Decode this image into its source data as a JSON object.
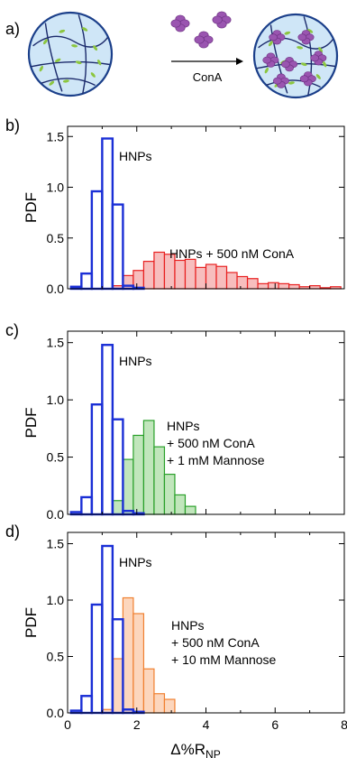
{
  "figure": {
    "panel_labels": [
      "a)",
      "b)",
      "c)",
      "d)"
    ],
    "scheme": {
      "arrow_label": "ConA"
    }
  },
  "colors": {
    "hnp": "#1a2fd6",
    "cona": "#e82020",
    "cona_fill": "#f6b3b3",
    "mannose1": "#2aa02a",
    "mannose1_fill": "#b6e2b0",
    "mannose10": "#f08030",
    "mannose10_fill": "#fbcfb2",
    "particle_fill": "#cfe6f7",
    "particle_stroke": "#1b3f8a",
    "cona_protein": "#9a55b0"
  },
  "chart_data": [
    {
      "type": "bar",
      "panel": "b)",
      "ylabel": "PDF",
      "xlabel": "",
      "xlim": [
        0,
        8
      ],
      "ylim": [
        0,
        1.6
      ],
      "yticks": [
        0.0,
        0.5,
        1.0,
        1.5
      ],
      "bin_width": 0.3,
      "series": [
        {
          "name": "HNPs",
          "style": "outline",
          "color": "hnp",
          "x": [
            0.25,
            0.55,
            0.85,
            1.15,
            1.45,
            1.75,
            2.05
          ],
          "values": [
            0.02,
            0.15,
            0.96,
            1.48,
            0.83,
            0.03,
            0.01
          ]
        },
        {
          "name": "HNPs + 500 nM ConA",
          "style": "filled",
          "color": "cona",
          "x": [
            1.45,
            1.75,
            2.05,
            2.35,
            2.65,
            2.95,
            3.25,
            3.55,
            3.85,
            4.15,
            4.45,
            4.75,
            5.05,
            5.35,
            5.65,
            5.95,
            6.25,
            6.55,
            6.85,
            7.15,
            7.45,
            7.75
          ],
          "values": [
            0.03,
            0.13,
            0.18,
            0.27,
            0.36,
            0.34,
            0.28,
            0.29,
            0.21,
            0.24,
            0.22,
            0.16,
            0.12,
            0.1,
            0.05,
            0.06,
            0.05,
            0.04,
            0.02,
            0.03,
            0.01,
            0.02
          ]
        }
      ],
      "annotations": [
        "HNPs",
        "HNPs + 500 nM ConA"
      ]
    },
    {
      "type": "bar",
      "panel": "c)",
      "ylabel": "PDF",
      "xlabel": "",
      "xlim": [
        0,
        8
      ],
      "ylim": [
        0,
        1.6
      ],
      "yticks": [
        0.0,
        0.5,
        1.0,
        1.5
      ],
      "bin_width": 0.3,
      "series": [
        {
          "name": "HNPs",
          "style": "outline",
          "color": "hnp",
          "x": [
            0.25,
            0.55,
            0.85,
            1.15,
            1.45,
            1.75,
            2.05
          ],
          "values": [
            0.02,
            0.15,
            0.96,
            1.48,
            0.83,
            0.03,
            0.01
          ]
        },
        {
          "name": "HNPs + 500 nM ConA + 1 mM Mannose",
          "style": "filled",
          "color": "mannose1",
          "x": [
            1.45,
            1.75,
            2.05,
            2.35,
            2.65,
            2.95,
            3.25,
            3.55
          ],
          "values": [
            0.12,
            0.48,
            0.69,
            0.82,
            0.59,
            0.35,
            0.17,
            0.07
          ]
        }
      ],
      "annotations": [
        "HNPs",
        "HNPs\n+ 500 nM ConA\n+ 1 mM Mannose"
      ]
    },
    {
      "type": "bar",
      "panel": "d)",
      "ylabel": "PDF",
      "xlabel": "Δ%R",
      "xlabel_sub": "NP",
      "xlim": [
        0,
        8
      ],
      "ylim": [
        0,
        1.6
      ],
      "xticks": [
        0,
        2,
        4,
        6,
        8
      ],
      "yticks": [
        0.0,
        0.5,
        1.0,
        1.5
      ],
      "bin_width": 0.3,
      "series": [
        {
          "name": "HNPs",
          "style": "outline",
          "color": "hnp",
          "x": [
            0.25,
            0.55,
            0.85,
            1.15,
            1.45,
            1.75,
            2.05
          ],
          "values": [
            0.02,
            0.15,
            0.96,
            1.48,
            0.83,
            0.03,
            0.01
          ]
        },
        {
          "name": "HNPs + 500 nM ConA + 10 mM Mannose",
          "style": "filled",
          "color": "mannose10",
          "x": [
            1.15,
            1.45,
            1.75,
            2.05,
            2.35,
            2.65,
            2.95
          ],
          "values": [
            0.03,
            0.48,
            1.02,
            0.88,
            0.39,
            0.17,
            0.12
          ]
        }
      ],
      "annotations": [
        "HNPs",
        "HNPs\n+ 500 nM ConA\n+ 10 mM Mannose"
      ]
    }
  ]
}
